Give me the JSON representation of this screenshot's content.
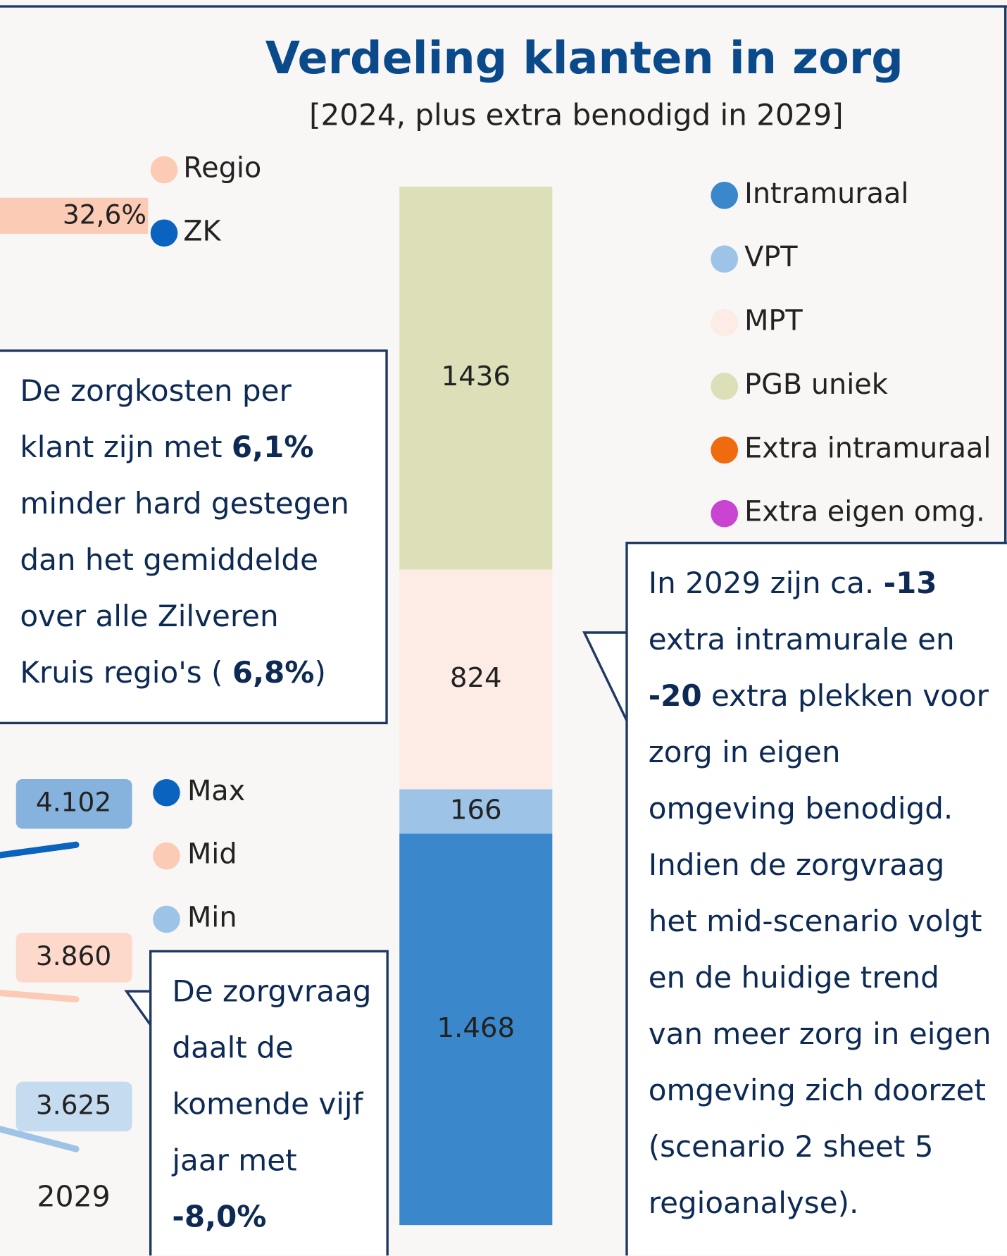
{
  "chart_data": {
    "type": "stacked_bar",
    "title": "Verdeling klanten in zorg",
    "subtitle": "[2024, plus extra benodigd in 2029]",
    "series": [
      {
        "name": "Intramuraal",
        "color": "#3a87cc",
        "values": [
          1468
        ],
        "value_labels": [
          "1.468"
        ]
      },
      {
        "name": "VPT",
        "color": "#9dc3e6",
        "values": [
          166
        ]
      },
      {
        "name": "MPT",
        "color": "#fdebe5",
        "values": [
          824
        ]
      },
      {
        "name": "PGB uniek",
        "color": "#dcdfb8",
        "values": [
          1436
        ]
      },
      {
        "name": "Extra intramuraal",
        "color": "#f06a0f",
        "values": [
          null
        ]
      },
      {
        "name": "Extra eigen omg.",
        "color": "#c944d0",
        "values": [
          null
        ]
      }
    ]
  },
  "cost_chart": {
    "legend": [
      {
        "name": "Regio",
        "color": "#fbcbb5"
      },
      {
        "name": "ZK",
        "color": "#0a64bf"
      }
    ],
    "regio_value": 32.6,
    "regio_label": "32,6%"
  },
  "scenario_chart": {
    "x": "2029",
    "series": [
      {
        "name": "Max",
        "color": "#0a64bf",
        "label_bg": "#86b3dd",
        "value": 4102,
        "label": "4.102"
      },
      {
        "name": "Mid",
        "color": "#fbcbb5",
        "label_bg": "#fcd9cb",
        "value": 3860,
        "label": "3.860"
      },
      {
        "name": "Min",
        "color": "#9dc3e6",
        "label_bg": "#c5dbf0",
        "value": 3625,
        "label": "3.625"
      }
    ]
  },
  "notes": [
    {
      "lines": [
        [
          {
            "text": "De zorgkosten per"
          }
        ],
        [
          {
            "text": "klant zijn met "
          },
          {
            "text": "6,1%",
            "bold": true
          }
        ],
        [
          {
            "text": "minder hard gestegen"
          }
        ],
        [
          {
            "text": "dan het gemiddelde"
          }
        ],
        [
          {
            "text": "over alle Zilveren"
          }
        ],
        [
          {
            "text": "Kruis regio's ( "
          },
          {
            "text": "6,8%",
            "bold": true
          },
          {
            "text": ")"
          }
        ]
      ]
    },
    {
      "lines": [
        [
          {
            "text": "In 2029 zijn ca. "
          },
          {
            "text": "-13",
            "bold": true
          }
        ],
        [
          {
            "text": "extra intramurale en"
          }
        ],
        [
          {
            "text": "-20",
            "bold": true
          },
          {
            "text": " extra plekken voor"
          }
        ],
        [
          {
            "text": "zorg in eigen"
          }
        ],
        [
          {
            "text": "omgeving benodigd."
          }
        ],
        [
          {
            "text": "Indien de zorgvraag"
          }
        ],
        [
          {
            "text": "het mid-scenario volgt"
          }
        ],
        [
          {
            "text": "en de huidige trend"
          }
        ],
        [
          {
            "text": "van meer zorg in eigen"
          }
        ],
        [
          {
            "text": "omgeving zich doorzet"
          }
        ],
        [
          {
            "text": "(scenario 2 sheet 5"
          }
        ],
        [
          {
            "text": "regioanalyse)."
          }
        ]
      ]
    },
    {
      "lines": [
        [
          {
            "text": "De zorgvraag"
          }
        ],
        [
          {
            "text": "daalt de"
          }
        ],
        [
          {
            "text": "komende vijf"
          }
        ],
        [
          {
            "text": "jaar met"
          }
        ],
        [
          {
            "text": "-8,0%",
            "bold": true
          }
        ]
      ]
    }
  ]
}
